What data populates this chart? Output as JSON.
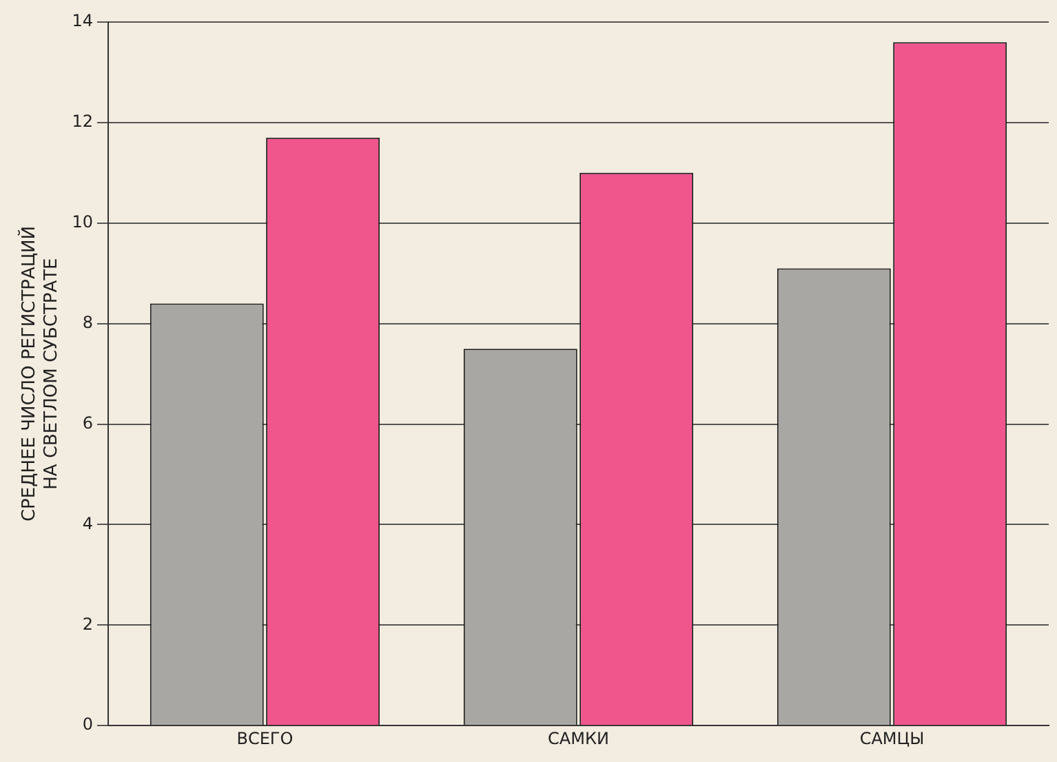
{
  "chart_data": {
    "type": "bar",
    "ylabel": "СРЕДНЕЕ ЧИСЛО РЕГИСТРАЦИЙ\nНА СВЕТЛОМ СУБСТРАТЕ",
    "categories": [
      "ВСЕГО",
      "САМКИ",
      "САМЦЫ"
    ],
    "series": [
      {
        "color": "#a9a7a4",
        "values": [
          8.4,
          7.5,
          9.1
        ]
      },
      {
        "color": "#f0568c",
        "values": [
          11.7,
          11.0,
          13.6
        ]
      }
    ],
    "ylim": [
      0,
      14
    ],
    "yticks": [
      0,
      2,
      4,
      6,
      8,
      10,
      12,
      14
    ],
    "grid": "y"
  }
}
